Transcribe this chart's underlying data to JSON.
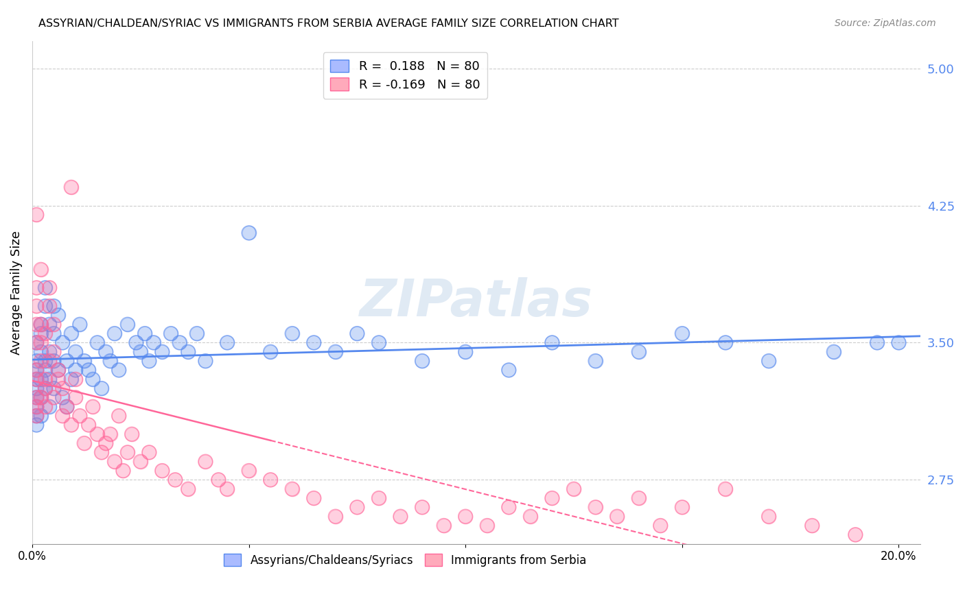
{
  "title": "ASSYRIAN/CHALDEAN/SYRIAC VS IMMIGRANTS FROM SERBIA AVERAGE FAMILY SIZE CORRELATION CHART",
  "source": "Source: ZipAtlas.com",
  "ylabel": "Average Family Size",
  "right_yticks": [
    5.0,
    4.25,
    3.5,
    2.75
  ],
  "legend1_label": "R =  0.188   N = 80",
  "legend2_label": "R = -0.169   N = 80",
  "blue_color": "#5588ee",
  "pink_color": "#ff6699",
  "watermark": "ZIPatlas",
  "ylim": [
    2.4,
    5.15
  ],
  "xlim": [
    0.0,
    0.205
  ],
  "blue_scatter": {
    "x": [
      0.001,
      0.001,
      0.001,
      0.001,
      0.001,
      0.001,
      0.001,
      0.001,
      0.001,
      0.002,
      0.002,
      0.002,
      0.002,
      0.002,
      0.002,
      0.003,
      0.003,
      0.003,
      0.003,
      0.003,
      0.004,
      0.004,
      0.004,
      0.004,
      0.005,
      0.005,
      0.005,
      0.005,
      0.006,
      0.006,
      0.007,
      0.007,
      0.008,
      0.008,
      0.009,
      0.009,
      0.01,
      0.01,
      0.011,
      0.012,
      0.013,
      0.014,
      0.015,
      0.016,
      0.017,
      0.018,
      0.019,
      0.02,
      0.022,
      0.024,
      0.025,
      0.026,
      0.027,
      0.028,
      0.03,
      0.032,
      0.034,
      0.036,
      0.038,
      0.04,
      0.045,
      0.05,
      0.055,
      0.06,
      0.065,
      0.07,
      0.075,
      0.08,
      0.09,
      0.1,
      0.11,
      0.12,
      0.13,
      0.14,
      0.15,
      0.16,
      0.17,
      0.185,
      0.195,
      0.2
    ],
    "y": [
      3.2,
      3.3,
      3.1,
      3.25,
      3.35,
      3.4,
      3.15,
      3.05,
      3.5,
      3.45,
      3.2,
      3.3,
      3.1,
      3.55,
      3.6,
      3.4,
      3.35,
      3.25,
      3.7,
      3.8,
      3.15,
      3.45,
      3.3,
      3.6,
      3.55,
      3.7,
      3.25,
      3.4,
      3.35,
      3.65,
      3.2,
      3.5,
      3.15,
      3.4,
      3.3,
      3.55,
      3.45,
      3.35,
      3.6,
      3.4,
      3.35,
      3.3,
      3.5,
      3.25,
      3.45,
      3.4,
      3.55,
      3.35,
      3.6,
      3.5,
      3.45,
      3.55,
      3.4,
      3.5,
      3.45,
      3.55,
      3.5,
      3.45,
      3.55,
      3.4,
      3.5,
      4.1,
      3.45,
      3.55,
      3.5,
      3.45,
      3.55,
      3.5,
      3.4,
      3.45,
      3.35,
      3.5,
      3.4,
      3.45,
      3.55,
      3.5,
      3.4,
      3.45,
      3.5,
      3.5
    ]
  },
  "pink_scatter": {
    "x": [
      0.001,
      0.001,
      0.001,
      0.001,
      0.001,
      0.001,
      0.001,
      0.001,
      0.001,
      0.001,
      0.002,
      0.002,
      0.002,
      0.002,
      0.002,
      0.003,
      0.003,
      0.003,
      0.003,
      0.004,
      0.004,
      0.004,
      0.005,
      0.005,
      0.005,
      0.006,
      0.006,
      0.007,
      0.007,
      0.008,
      0.009,
      0.009,
      0.01,
      0.01,
      0.011,
      0.012,
      0.013,
      0.014,
      0.015,
      0.016,
      0.017,
      0.018,
      0.019,
      0.02,
      0.021,
      0.022,
      0.023,
      0.025,
      0.027,
      0.03,
      0.033,
      0.036,
      0.04,
      0.043,
      0.045,
      0.05,
      0.055,
      0.06,
      0.065,
      0.07,
      0.075,
      0.08,
      0.085,
      0.09,
      0.095,
      0.1,
      0.105,
      0.11,
      0.115,
      0.12,
      0.125,
      0.13,
      0.135,
      0.14,
      0.145,
      0.15,
      0.16,
      0.17,
      0.18,
      0.19
    ],
    "y": [
      3.2,
      3.3,
      3.1,
      4.2,
      3.5,
      3.7,
      3.8,
      3.6,
      3.15,
      3.35,
      3.9,
      3.2,
      3.5,
      3.4,
      3.6,
      3.25,
      3.3,
      3.55,
      3.15,
      3.7,
      3.4,
      3.8,
      3.6,
      3.45,
      3.2,
      3.3,
      3.35,
      3.1,
      3.25,
      3.15,
      3.05,
      4.35,
      3.2,
      3.3,
      3.1,
      2.95,
      3.05,
      3.15,
      3.0,
      2.9,
      2.95,
      3.0,
      2.85,
      3.1,
      2.8,
      2.9,
      3.0,
      2.85,
      2.9,
      2.8,
      2.75,
      2.7,
      2.85,
      2.75,
      2.7,
      2.8,
      2.75,
      2.7,
      2.65,
      2.55,
      2.6,
      2.65,
      2.55,
      2.6,
      2.5,
      2.55,
      2.5,
      2.6,
      2.55,
      2.65,
      2.7,
      2.6,
      2.55,
      2.65,
      2.5,
      2.6,
      2.7,
      2.55,
      2.5,
      2.45
    ]
  }
}
